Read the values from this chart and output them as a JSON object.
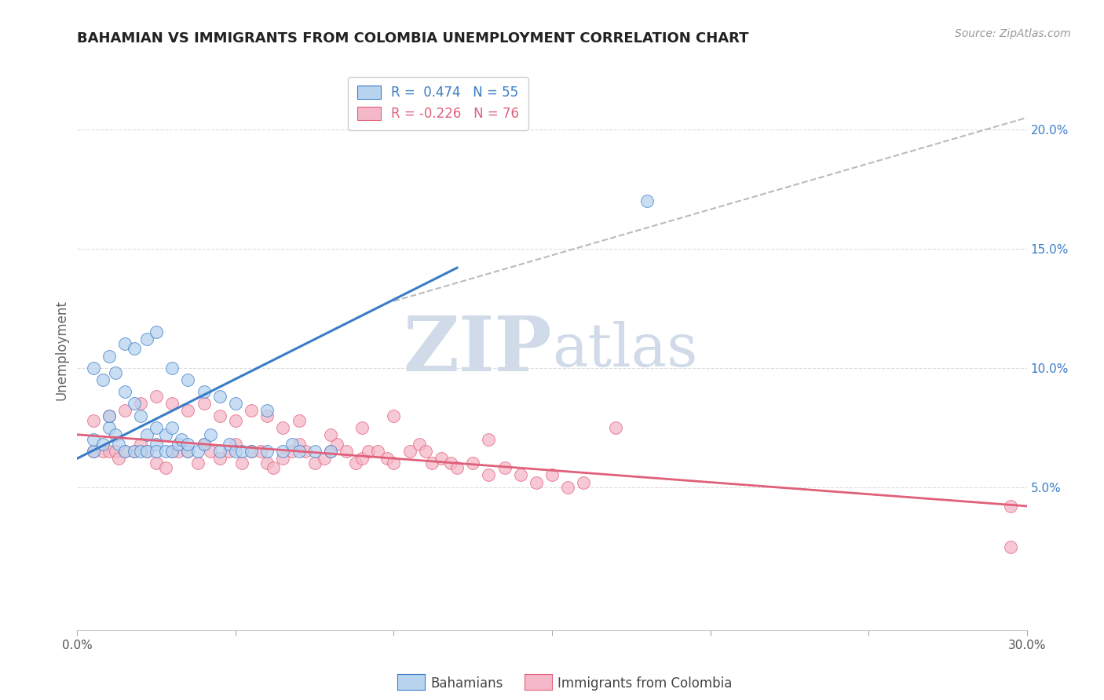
{
  "title": "BAHAMIAN VS IMMIGRANTS FROM COLOMBIA UNEMPLOYMENT CORRELATION CHART",
  "source": "Source: ZipAtlas.com",
  "ylabel": "Unemployment",
  "xlim": [
    0,
    0.3
  ],
  "ylim": [
    -0.01,
    0.225
  ],
  "yticks_right": [
    0.05,
    0.1,
    0.15,
    0.2
  ],
  "ytick_labels_right": [
    "5.0%",
    "10.0%",
    "15.0%",
    "20.0%"
  ],
  "legend_r1": "R =  0.474   N = 55",
  "legend_r2": "R = -0.226   N = 76",
  "legend_label1": "Bahamians",
  "legend_label2": "Immigrants from Colombia",
  "blue_color": "#b8d4ef",
  "pink_color": "#f5b8c8",
  "blue_line_color": "#3a7cc7",
  "pink_line_color": "#e0607a",
  "dash_line_color": "#bbbbbb",
  "watermark_zip": "ZIP",
  "watermark_atlas": "atlas",
  "watermark_color": "#d0dae8",
  "blue_scatter_x": [
    0.005,
    0.005,
    0.008,
    0.01,
    0.01,
    0.012,
    0.013,
    0.015,
    0.015,
    0.018,
    0.018,
    0.02,
    0.02,
    0.022,
    0.022,
    0.025,
    0.025,
    0.025,
    0.028,
    0.028,
    0.03,
    0.03,
    0.032,
    0.033,
    0.035,
    0.035,
    0.038,
    0.04,
    0.042,
    0.045,
    0.048,
    0.05,
    0.052,
    0.055,
    0.06,
    0.065,
    0.068,
    0.07,
    0.075,
    0.08,
    0.005,
    0.008,
    0.01,
    0.012,
    0.015,
    0.018,
    0.022,
    0.025,
    0.03,
    0.035,
    0.04,
    0.045,
    0.05,
    0.06,
    0.18
  ],
  "blue_scatter_y": [
    0.065,
    0.07,
    0.068,
    0.075,
    0.08,
    0.072,
    0.068,
    0.065,
    0.09,
    0.065,
    0.085,
    0.08,
    0.065,
    0.072,
    0.065,
    0.075,
    0.068,
    0.065,
    0.072,
    0.065,
    0.075,
    0.065,
    0.068,
    0.07,
    0.065,
    0.068,
    0.065,
    0.068,
    0.072,
    0.065,
    0.068,
    0.065,
    0.065,
    0.065,
    0.065,
    0.065,
    0.068,
    0.065,
    0.065,
    0.065,
    0.1,
    0.095,
    0.105,
    0.098,
    0.11,
    0.108,
    0.112,
    0.115,
    0.1,
    0.095,
    0.09,
    0.088,
    0.085,
    0.082,
    0.17
  ],
  "pink_scatter_x": [
    0.005,
    0.008,
    0.01,
    0.012,
    0.013,
    0.015,
    0.018,
    0.02,
    0.022,
    0.025,
    0.028,
    0.03,
    0.032,
    0.035,
    0.038,
    0.04,
    0.042,
    0.045,
    0.048,
    0.05,
    0.052,
    0.055,
    0.058,
    0.06,
    0.062,
    0.065,
    0.068,
    0.07,
    0.072,
    0.075,
    0.078,
    0.08,
    0.082,
    0.085,
    0.088,
    0.09,
    0.092,
    0.095,
    0.098,
    0.1,
    0.105,
    0.108,
    0.11,
    0.112,
    0.115,
    0.118,
    0.12,
    0.125,
    0.13,
    0.135,
    0.14,
    0.145,
    0.15,
    0.155,
    0.16,
    0.005,
    0.01,
    0.015,
    0.02,
    0.025,
    0.03,
    0.035,
    0.04,
    0.045,
    0.05,
    0.055,
    0.06,
    0.065,
    0.07,
    0.08,
    0.09,
    0.1,
    0.13,
    0.17,
    0.295,
    0.295
  ],
  "pink_scatter_y": [
    0.065,
    0.065,
    0.065,
    0.065,
    0.062,
    0.065,
    0.065,
    0.068,
    0.065,
    0.06,
    0.058,
    0.065,
    0.065,
    0.065,
    0.06,
    0.068,
    0.065,
    0.062,
    0.065,
    0.068,
    0.06,
    0.065,
    0.065,
    0.06,
    0.058,
    0.062,
    0.065,
    0.068,
    0.065,
    0.06,
    0.062,
    0.065,
    0.068,
    0.065,
    0.06,
    0.062,
    0.065,
    0.065,
    0.062,
    0.06,
    0.065,
    0.068,
    0.065,
    0.06,
    0.062,
    0.06,
    0.058,
    0.06,
    0.055,
    0.058,
    0.055,
    0.052,
    0.055,
    0.05,
    0.052,
    0.078,
    0.08,
    0.082,
    0.085,
    0.088,
    0.085,
    0.082,
    0.085,
    0.08,
    0.078,
    0.082,
    0.08,
    0.075,
    0.078,
    0.072,
    0.075,
    0.08,
    0.07,
    0.075,
    0.025,
    0.042
  ],
  "blue_line_x0": 0.0,
  "blue_line_x1": 0.12,
  "blue_line_y0": 0.062,
  "blue_line_y1": 0.142,
  "pink_line_x0": 0.0,
  "pink_line_x1": 0.3,
  "pink_line_y0": 0.072,
  "pink_line_y1": 0.042,
  "dash_line_x0": 0.1,
  "dash_line_x1": 0.3,
  "dash_line_y0": 0.128,
  "dash_line_y1": 0.205
}
